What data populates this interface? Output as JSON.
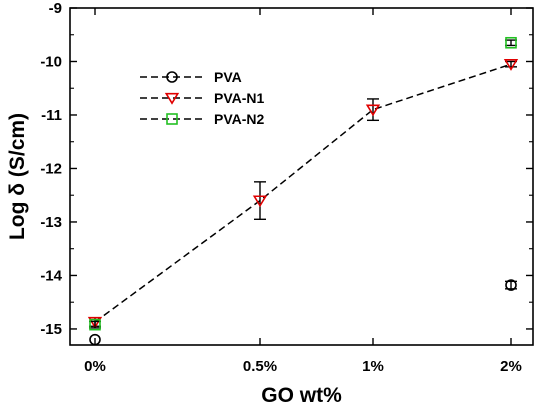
{
  "chart_data": {
    "type": "line",
    "xlabel": "GO wt%",
    "ylabel": "Log δ (S/cm)",
    "categories": [
      "0%",
      "0.5%",
      "1%",
      "2%"
    ],
    "ylim": [
      -15.3,
      -9
    ],
    "yticks": [
      -15,
      -14,
      -13,
      -12,
      -11,
      -10,
      -9
    ],
    "grid": false,
    "legend_position": "top-left",
    "series": [
      {
        "name": "PVA",
        "marker": "circle",
        "color": "#000000",
        "line": "dashed",
        "points": [
          {
            "category": "0%",
            "y": -15.2,
            "err": 0
          },
          {
            "category": "2%",
            "y": -14.18,
            "err": 0.07
          }
        ]
      },
      {
        "name": "PVA-N1",
        "marker": "triangle-down",
        "color": "#e00000",
        "line": "dashed",
        "points": [
          {
            "category": "0%",
            "y": -14.87,
            "err": 0.08
          },
          {
            "category": "0.5%",
            "y": -12.6,
            "err": 0.35
          },
          {
            "category": "1%",
            "y": -10.9,
            "err": 0.2
          },
          {
            "category": "2%",
            "y": -10.05,
            "err": 0.05
          }
        ]
      },
      {
        "name": "PVA-N2",
        "marker": "square",
        "color": "#22c022",
        "line": "dashed",
        "points": [
          {
            "category": "0%",
            "y": -14.92,
            "err": 0.06
          },
          {
            "category": "2%",
            "y": -9.65,
            "err": 0.05
          }
        ]
      }
    ]
  }
}
